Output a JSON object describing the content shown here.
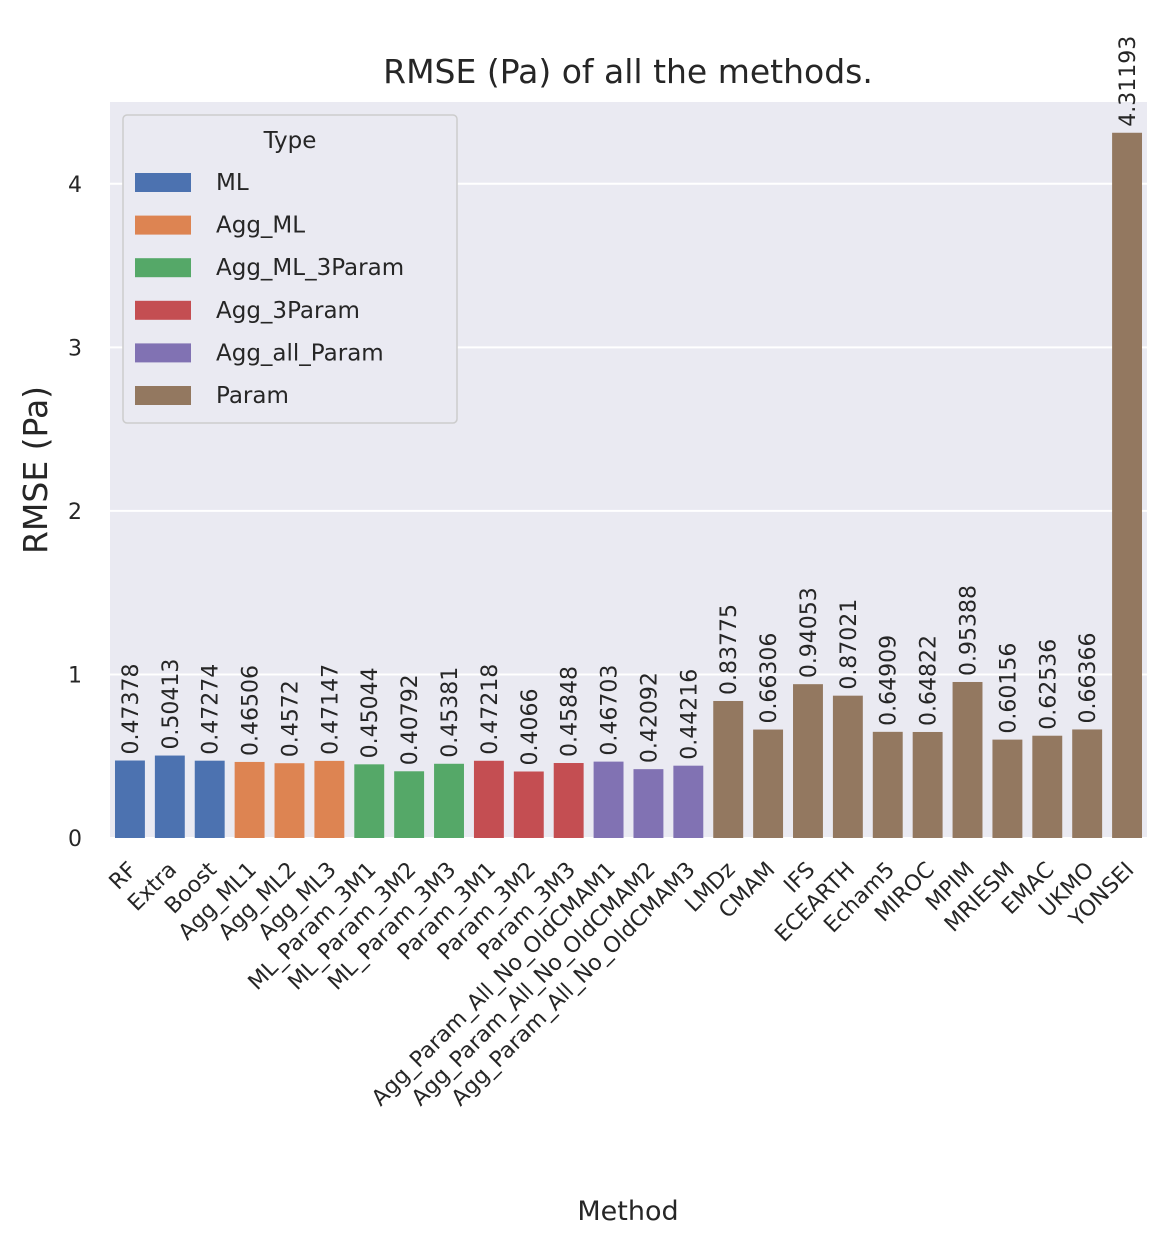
{
  "chart_data": {
    "type": "bar",
    "title": "RMSE (Pa) of all the methods.",
    "xlabel": "Method",
    "ylabel": "RMSE (Pa)",
    "ylim": [
      0,
      4.5
    ],
    "yticks": [
      0,
      1,
      2,
      3,
      4
    ],
    "grid": true,
    "legend": {
      "title": "Type",
      "placement": "top-left",
      "entries": [
        {
          "name": "ML",
          "color": "#4c72b0"
        },
        {
          "name": "Agg_ML",
          "color": "#dd8452"
        },
        {
          "name": "Agg_ML_3Param",
          "color": "#55a868"
        },
        {
          "name": "Agg_3Param",
          "color": "#c44e52"
        },
        {
          "name": "Agg_all_Param",
          "color": "#8172b3"
        },
        {
          "name": "Param",
          "color": "#937860"
        }
      ]
    },
    "categories": [
      "RF",
      "Extra",
      "Boost",
      "Agg_ML1",
      "Agg_ML2",
      "Agg_ML3",
      "ML_Param_3M1",
      "ML_Param_3M2",
      "ML_Param_3M3",
      "Param_3M1",
      "Param_3M2",
      "Param_3M3",
      "Agg_Param_All_No_OldCMAM1",
      "Agg_Param_All_No_OldCMAM2",
      "Agg_Param_All_No_OldCMAM3",
      "LMDz",
      "CMAM",
      "IFS",
      "ECEARTH",
      "Echam5",
      "MIROC",
      "MPIM",
      "MRIESM",
      "EMAC",
      "UKMO",
      "YONSEI"
    ],
    "values": [
      0.47378,
      0.50413,
      0.47274,
      0.46506,
      0.4572,
      0.47147,
      0.45044,
      0.40792,
      0.45381,
      0.47218,
      0.4066,
      0.45848,
      0.46703,
      0.42092,
      0.44216,
      0.83775,
      0.66306,
      0.94053,
      0.87021,
      0.64909,
      0.64822,
      0.95388,
      0.60156,
      0.62536,
      0.66366,
      4.31193
    ],
    "value_labels": [
      "0.47378",
      "0.50413",
      "0.47274",
      "0.46506",
      "0.4572",
      "0.47147",
      "0.45044",
      "0.40792",
      "0.45381",
      "0.47218",
      "0.4066",
      "0.45848",
      "0.46703",
      "0.42092",
      "0.44216",
      "0.83775",
      "0.66306",
      "0.94053",
      "0.87021",
      "0.64909",
      "0.64822",
      "0.95388",
      "0.60156",
      "0.62536",
      "0.66366",
      "4.31193"
    ],
    "types": [
      "ML",
      "ML",
      "ML",
      "Agg_ML",
      "Agg_ML",
      "Agg_ML",
      "Agg_ML_3Param",
      "Agg_ML_3Param",
      "Agg_ML_3Param",
      "Agg_3Param",
      "Agg_3Param",
      "Agg_3Param",
      "Agg_all_Param",
      "Agg_all_Param",
      "Agg_all_Param",
      "Param",
      "Param",
      "Param",
      "Param",
      "Param",
      "Param",
      "Param",
      "Param",
      "Param",
      "Param",
      "Param"
    ]
  },
  "colors": {
    "plot_background": "#eaeaf2",
    "grid": "#ffffff",
    "text": "#262626"
  }
}
